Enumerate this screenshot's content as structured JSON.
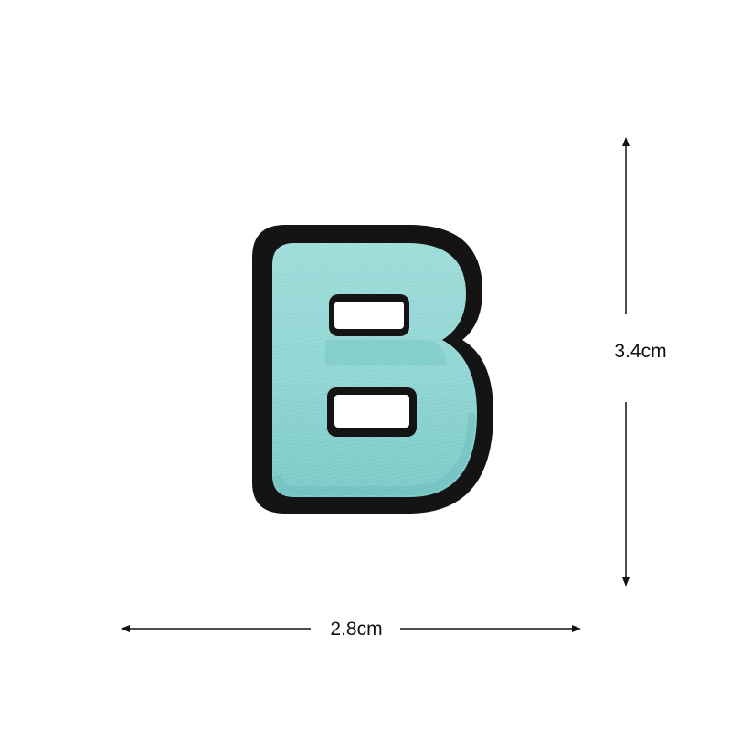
{
  "product": {
    "letter": "B",
    "fill_color": "#8fd5d2",
    "fill_shadow_color": "#5fb8b8",
    "border_color": "#141414"
  },
  "dimensions": {
    "height_label": "3.4cm",
    "width_label": "2.8cm"
  }
}
